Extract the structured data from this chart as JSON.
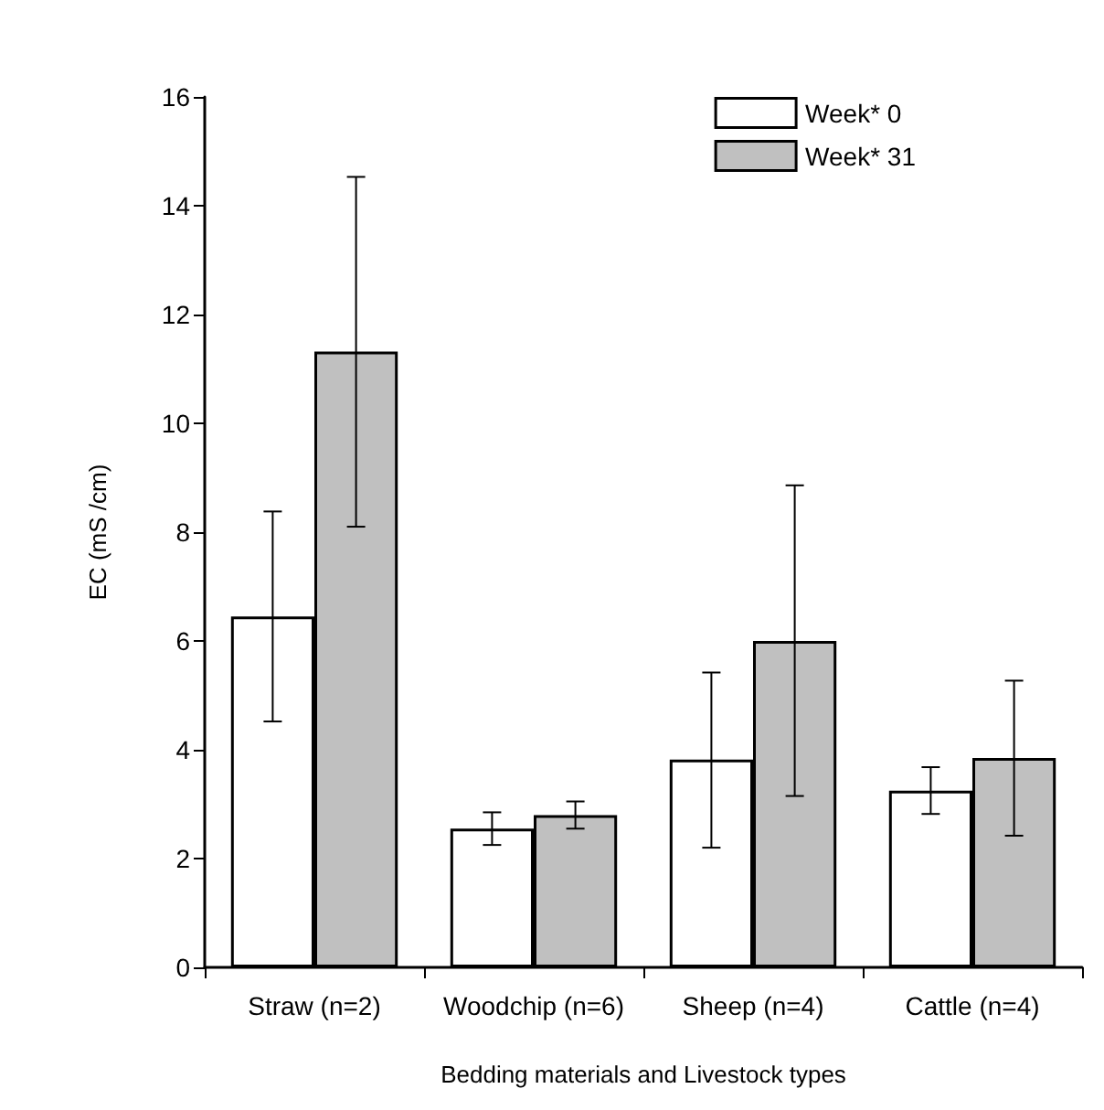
{
  "chart_data": {
    "type": "bar",
    "xlabel": "Bedding materials and Livestock types",
    "ylabel": "EC (mS /cm)",
    "categories": [
      "Straw (n=2)",
      "Woodchip (n=6)",
      "Sheep (n=4)",
      "Cattle (n=4)"
    ],
    "series": [
      {
        "name": "Week* 0",
        "color": "#ffffff",
        "values": [
          6.45,
          2.55,
          3.82,
          3.25
        ],
        "errors": [
          [
            4.52,
            8.38
          ],
          [
            2.25,
            2.85
          ],
          [
            2.2,
            5.42
          ],
          [
            2.82,
            3.68
          ]
        ]
      },
      {
        "name": "Week* 31",
        "color": "#c0c0c0",
        "values": [
          11.32,
          2.8,
          6.0,
          3.85
        ],
        "errors": [
          [
            8.1,
            14.53
          ],
          [
            2.55,
            3.05
          ],
          [
            3.15,
            8.86
          ],
          [
            2.42,
            5.27
          ]
        ]
      }
    ],
    "ylim": [
      0,
      16
    ],
    "yticks": [
      0,
      2,
      4,
      6,
      8,
      10,
      12,
      14,
      16
    ],
    "grid": false,
    "legend": "top right"
  }
}
